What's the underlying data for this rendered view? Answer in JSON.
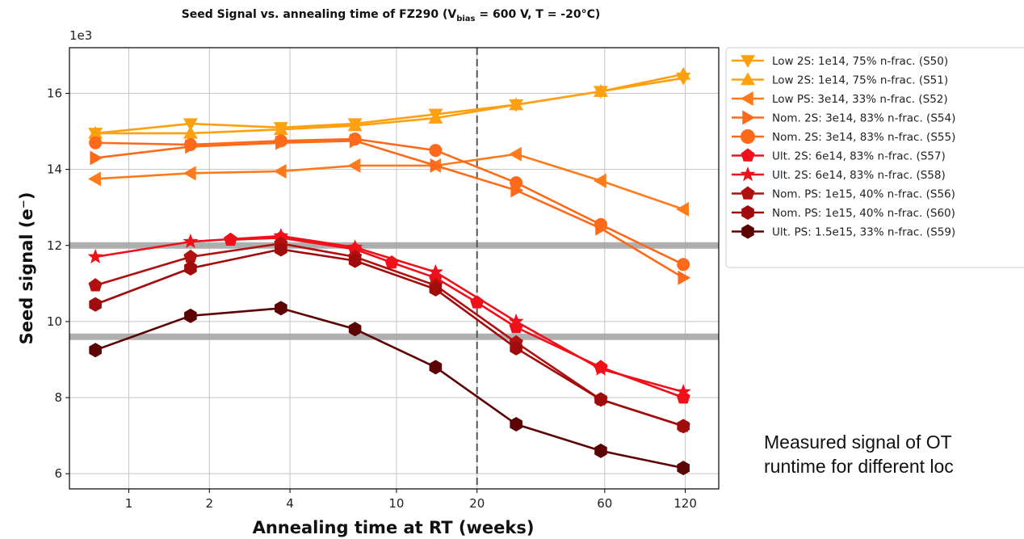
{
  "chart_data": {
    "type": "line",
    "title_main": "Seed Signal vs. annealing time of FZ290 (V",
    "title_sub": "bias",
    "title_rest": " = 600 V, T = -20°C)",
    "ylabel": "Seed signal (e⁻)",
    "xlabel": "Annealing time at RT (weeks)",
    "y_multiplier": "1e3",
    "x_scale": "log",
    "xlim": [
      0.6,
      160
    ],
    "ylim": [
      5.6,
      17.2
    ],
    "x_ticks": [
      {
        "value": 1,
        "label": "1"
      },
      {
        "value": 2,
        "label": "2"
      },
      {
        "value": 4,
        "label": "4"
      },
      {
        "value": 10,
        "label": "10"
      },
      {
        "value": 20,
        "label": "20"
      },
      {
        "value": 60,
        "label": "60"
      },
      {
        "value": 120,
        "label": "120"
      }
    ],
    "y_ticks": [
      {
        "value": 6,
        "label": "6"
      },
      {
        "value": 8,
        "label": "8"
      },
      {
        "value": 10,
        "label": "10"
      },
      {
        "value": 12,
        "label": "12"
      },
      {
        "value": 14,
        "label": "14"
      },
      {
        "value": 16,
        "label": "16"
      }
    ],
    "grid": true,
    "legend_position": "outside-right",
    "reference_bands": [
      {
        "y": 12.0,
        "color": "#a6a6a6"
      },
      {
        "y": 9.6,
        "color": "#a6a6a6"
      }
    ],
    "vertical_dashed_line_x": 20,
    "series": [
      {
        "name": "Low 2S: 1e14, 75% n-frac. (S50)",
        "color": "#ffa010",
        "marker": "triangle-down",
        "x": [
          0.75,
          1.7,
          3.7,
          7,
          14,
          28,
          58,
          118
        ],
        "y": [
          14.95,
          15.2,
          15.1,
          15.2,
          15.45,
          15.7,
          16.05,
          16.4
        ]
      },
      {
        "name": "Low 2S: 1e14, 75% n-frac. (S51)",
        "color": "#ffa010",
        "marker": "triangle-up",
        "x": [
          0.75,
          1.7,
          3.7,
          7,
          14,
          28,
          58,
          118
        ],
        "y": [
          14.95,
          14.95,
          15.05,
          15.15,
          15.35,
          15.7,
          16.05,
          16.5
        ]
      },
      {
        "name": "Low PS: 3e14, 33% n-frac. (S52)",
        "color": "#ff7a1a",
        "marker": "triangle-left",
        "x": [
          0.75,
          1.7,
          3.7,
          7,
          14,
          28,
          58,
          118
        ],
        "y": [
          13.75,
          13.9,
          13.95,
          14.1,
          14.1,
          14.4,
          13.7,
          12.95
        ]
      },
      {
        "name": "Nom. 2S: 3e14, 83% n-frac. (S54)",
        "color": "#ff6a1a",
        "marker": "triangle-right",
        "x": [
          0.75,
          1.7,
          3.7,
          7,
          14,
          28,
          58,
          118
        ],
        "y": [
          14.3,
          14.6,
          14.7,
          14.75,
          14.1,
          13.45,
          12.45,
          11.15
        ]
      },
      {
        "name": "Nom. 2S: 3e14, 83% n-frac. (S55)",
        "color": "#ff6a1a",
        "marker": "circle",
        "x": [
          0.75,
          1.7,
          3.7,
          7,
          14,
          28,
          58,
          118
        ],
        "y": [
          14.7,
          14.65,
          14.75,
          14.8,
          14.5,
          13.65,
          12.55,
          11.5
        ]
      },
      {
        "name": "Ult. 2S: 6e14, 83% n-frac. (S57)",
        "color": "#f0101a",
        "marker": "pentagon",
        "x": [
          2.4,
          3.7,
          7,
          9.6,
          14,
          20,
          28,
          58,
          118
        ],
        "y": [
          12.15,
          12.2,
          11.9,
          11.55,
          11.15,
          10.5,
          9.85,
          8.8,
          8.0
        ]
      },
      {
        "name": "Ult. 2S: 6e14, 83% n-frac. (S58)",
        "color": "#f0101a",
        "marker": "star",
        "x": [
          0.75,
          1.7,
          3.7,
          7,
          14,
          28,
          58,
          118
        ],
        "y": [
          11.7,
          12.1,
          12.25,
          11.95,
          11.3,
          10.0,
          8.75,
          8.15
        ]
      },
      {
        "name": "Nom. PS: 1e15, 40% n-frac. (S56)",
        "color": "#b01010",
        "marker": "pentagon",
        "x": [
          0.75,
          1.7,
          3.7,
          7,
          14,
          28,
          58,
          118
        ],
        "y": [
          10.95,
          11.7,
          12.05,
          11.7,
          10.95,
          9.45,
          7.95,
          7.25
        ]
      },
      {
        "name": "Nom. PS: 1e15, 40% n-frac. (S60)",
        "color": "#a00c0c",
        "marker": "hexagon",
        "x": [
          0.75,
          1.7,
          3.7,
          7,
          14,
          28,
          58,
          118
        ],
        "y": [
          10.45,
          11.4,
          11.9,
          11.6,
          10.85,
          9.3,
          7.95,
          7.25
        ]
      },
      {
        "name": "Ult. PS: 1.5e15, 33% n-frac. (S59)",
        "color": "#5c0404",
        "marker": "hexagon",
        "x": [
          0.75,
          1.7,
          3.7,
          7,
          14,
          28,
          58,
          118
        ],
        "y": [
          9.25,
          10.15,
          10.35,
          9.8,
          8.8,
          7.3,
          6.6,
          6.15
        ]
      }
    ]
  },
  "caption": {
    "line1": "Measured signal of OT",
    "line2": "runtime for different loc"
  }
}
